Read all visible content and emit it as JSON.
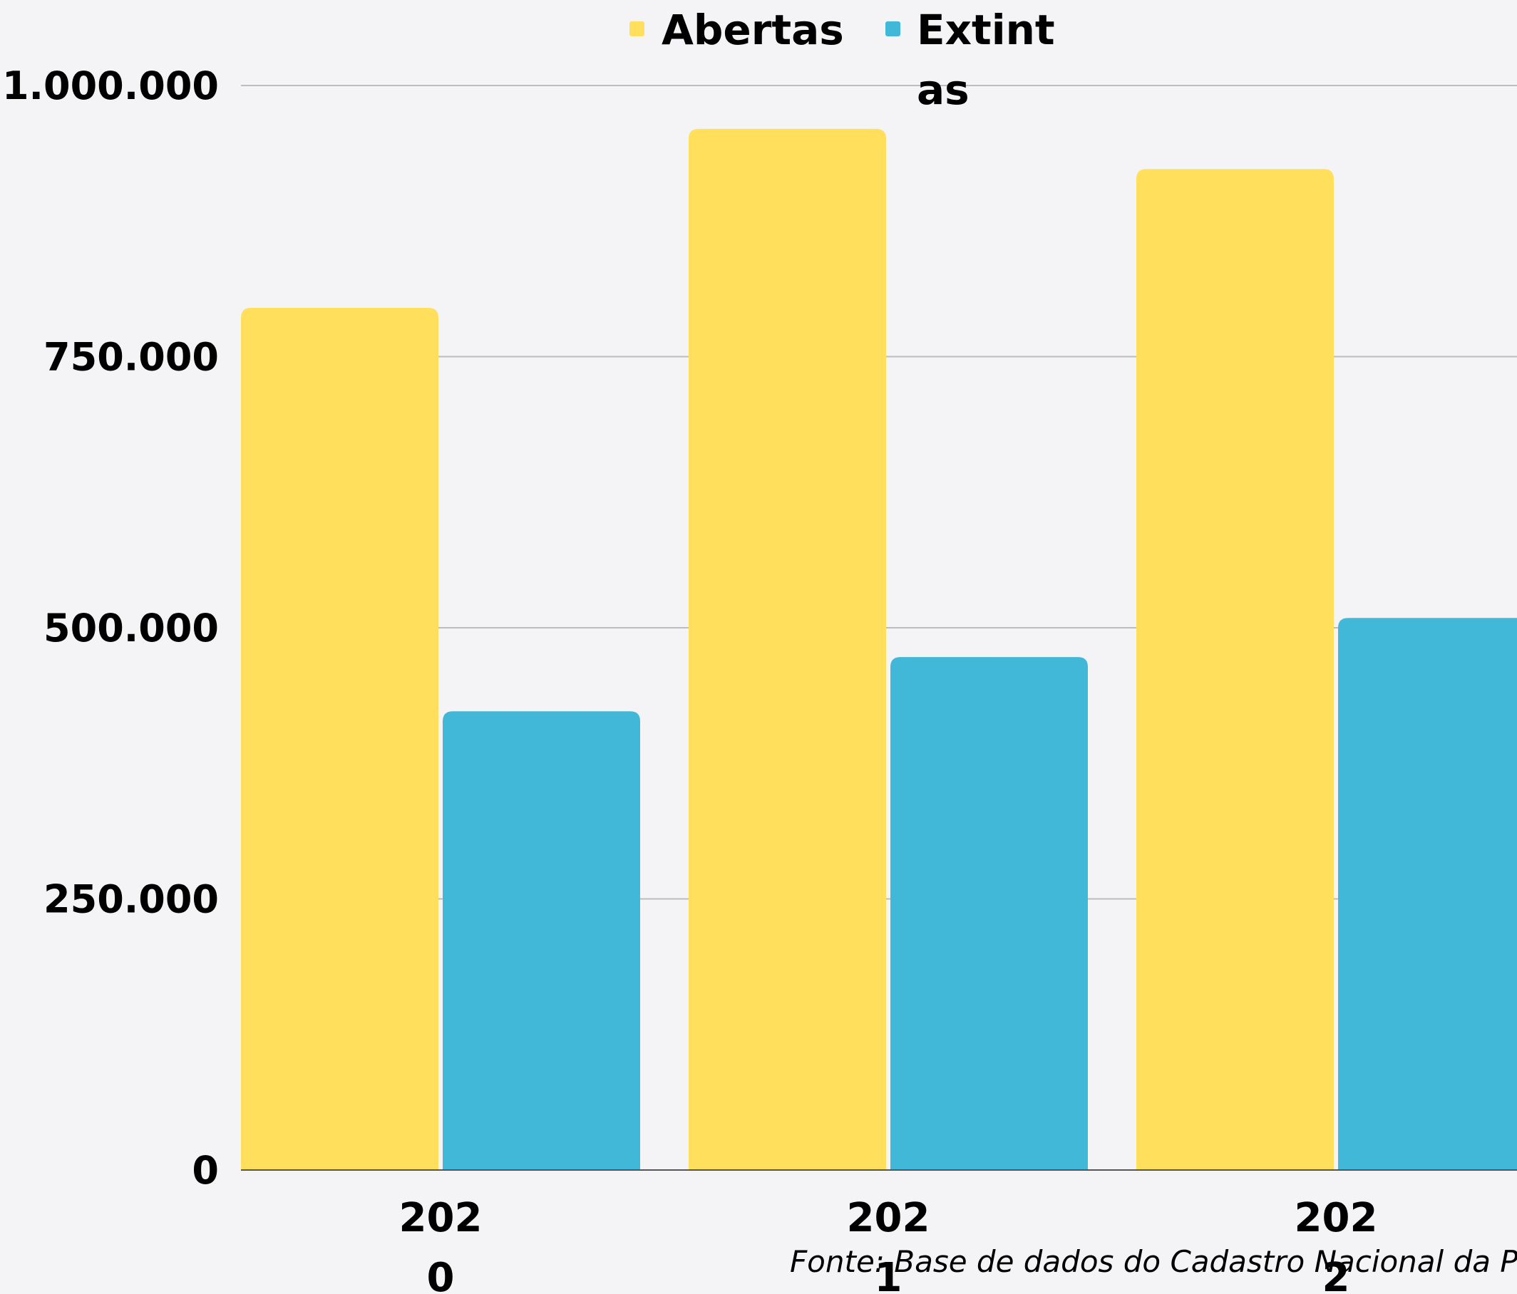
{
  "chart_data": {
    "type": "bar",
    "categories": [
      "2020",
      "2021",
      "2022"
    ],
    "series": [
      {
        "name": "Abertas",
        "color": "#ffdf5c",
        "values": [
          795000,
          960000,
          923000
        ]
      },
      {
        "name": "Extintas",
        "color": "#41b8d7",
        "values": [
          423000,
          473000,
          509000
        ]
      }
    ],
    "ylim": [
      0,
      1000000
    ],
    "yticks": [
      0,
      250000,
      500000,
      750000,
      1000000
    ],
    "ytick_labels": [
      "0",
      "250.000",
      "500.000",
      "750.000",
      "1.000.000"
    ],
    "grid": true,
    "legend_position": "top",
    "source": "Fonte: Base de dados do Cadastro Nacional da Pess"
  }
}
